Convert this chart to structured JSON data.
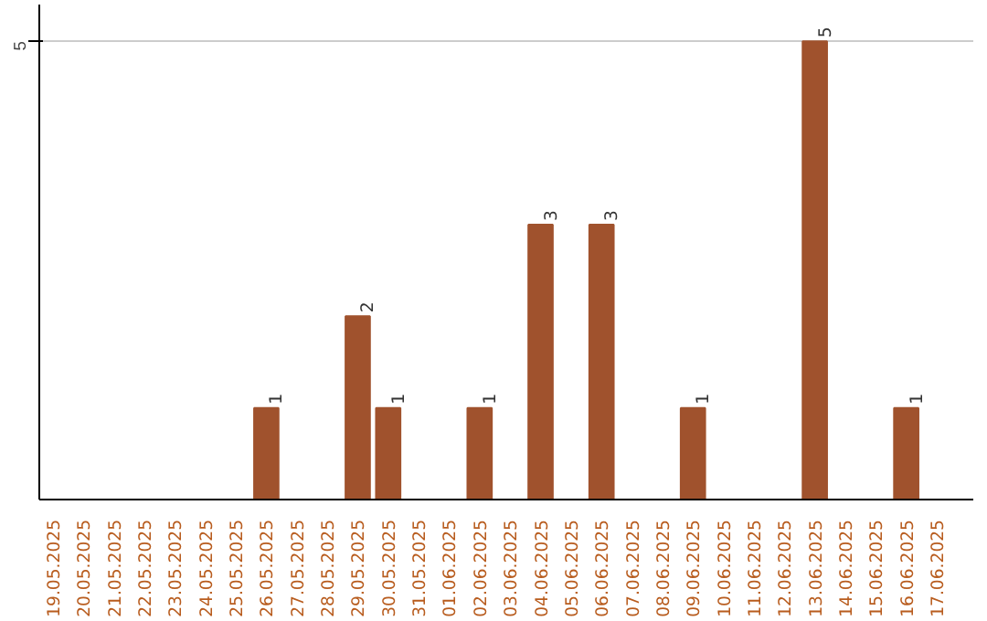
{
  "chart_data": {
    "type": "bar",
    "categories": [
      "19.05.2025",
      "20.05.2025",
      "21.05.2025",
      "22.05.2025",
      "23.05.2025",
      "24.05.2025",
      "25.05.2025",
      "26.05.2025",
      "27.05.2025",
      "28.05.2025",
      "29.05.2025",
      "30.05.2025",
      "31.05.2025",
      "01.06.2025",
      "02.06.2025",
      "03.06.2025",
      "04.06.2025",
      "05.06.2025",
      "06.06.2025",
      "07.06.2025",
      "08.06.2025",
      "09.06.2025",
      "10.06.2025",
      "11.06.2025",
      "12.06.2025",
      "13.06.2025",
      "14.06.2025",
      "15.06.2025",
      "16.06.2025",
      "17.06.2025"
    ],
    "values": [
      0,
      0,
      0,
      0,
      0,
      0,
      0,
      1,
      0,
      0,
      2,
      1,
      0,
      0,
      1,
      0,
      3,
      0,
      3,
      0,
      0,
      1,
      0,
      0,
      0,
      5,
      0,
      0,
      1,
      0
    ],
    "value_labels": [
      null,
      null,
      null,
      null,
      null,
      null,
      null,
      "1",
      null,
      null,
      "2",
      "1",
      null,
      null,
      "1",
      null,
      "3",
      null,
      "3",
      null,
      null,
      "1",
      null,
      null,
      null,
      "5",
      null,
      null,
      "1",
      null
    ],
    "color": "#a0522d",
    "ylim": [
      0,
      5.4
    ],
    "yticks": [
      5
    ],
    "grid": "y"
  }
}
